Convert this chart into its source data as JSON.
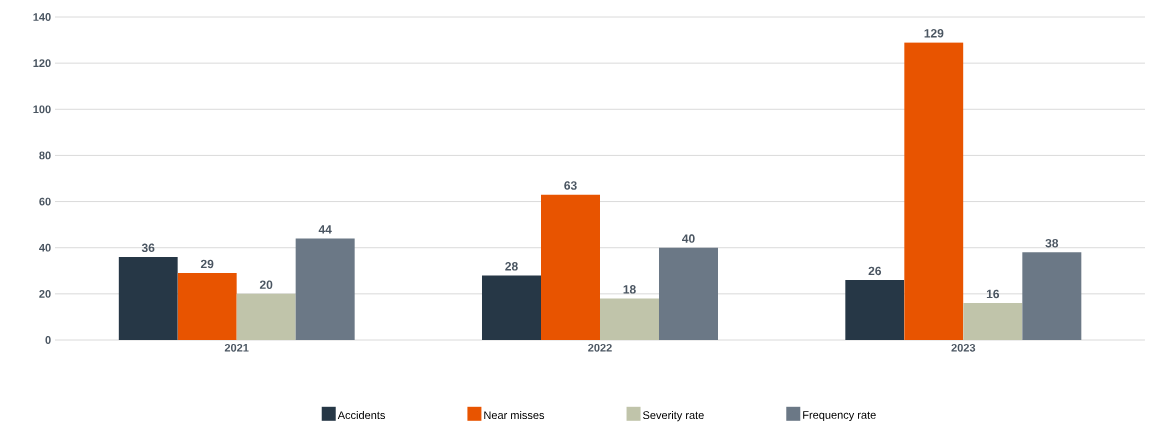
{
  "chart_data": {
    "type": "bar",
    "categories": [
      "2021",
      "2022",
      "2023"
    ],
    "series": [
      {
        "name": "Accidents",
        "color": "#263746",
        "values": [
          36,
          28,
          26
        ]
      },
      {
        "name": "Near misses",
        "color": "#e85400",
        "values": [
          29,
          63,
          129
        ]
      },
      {
        "name": "Severity rate",
        "color": "#c0c4aa",
        "values": [
          20,
          18,
          16
        ]
      },
      {
        "name": "Frequency rate",
        "color": "#6b7886",
        "values": [
          44,
          40,
          38
        ]
      }
    ],
    "ylim": [
      0,
      140
    ],
    "yticks": [
      0,
      20,
      40,
      60,
      80,
      100,
      120,
      140
    ],
    "grid": "y",
    "legend": "bottom",
    "data_labels": true
  }
}
